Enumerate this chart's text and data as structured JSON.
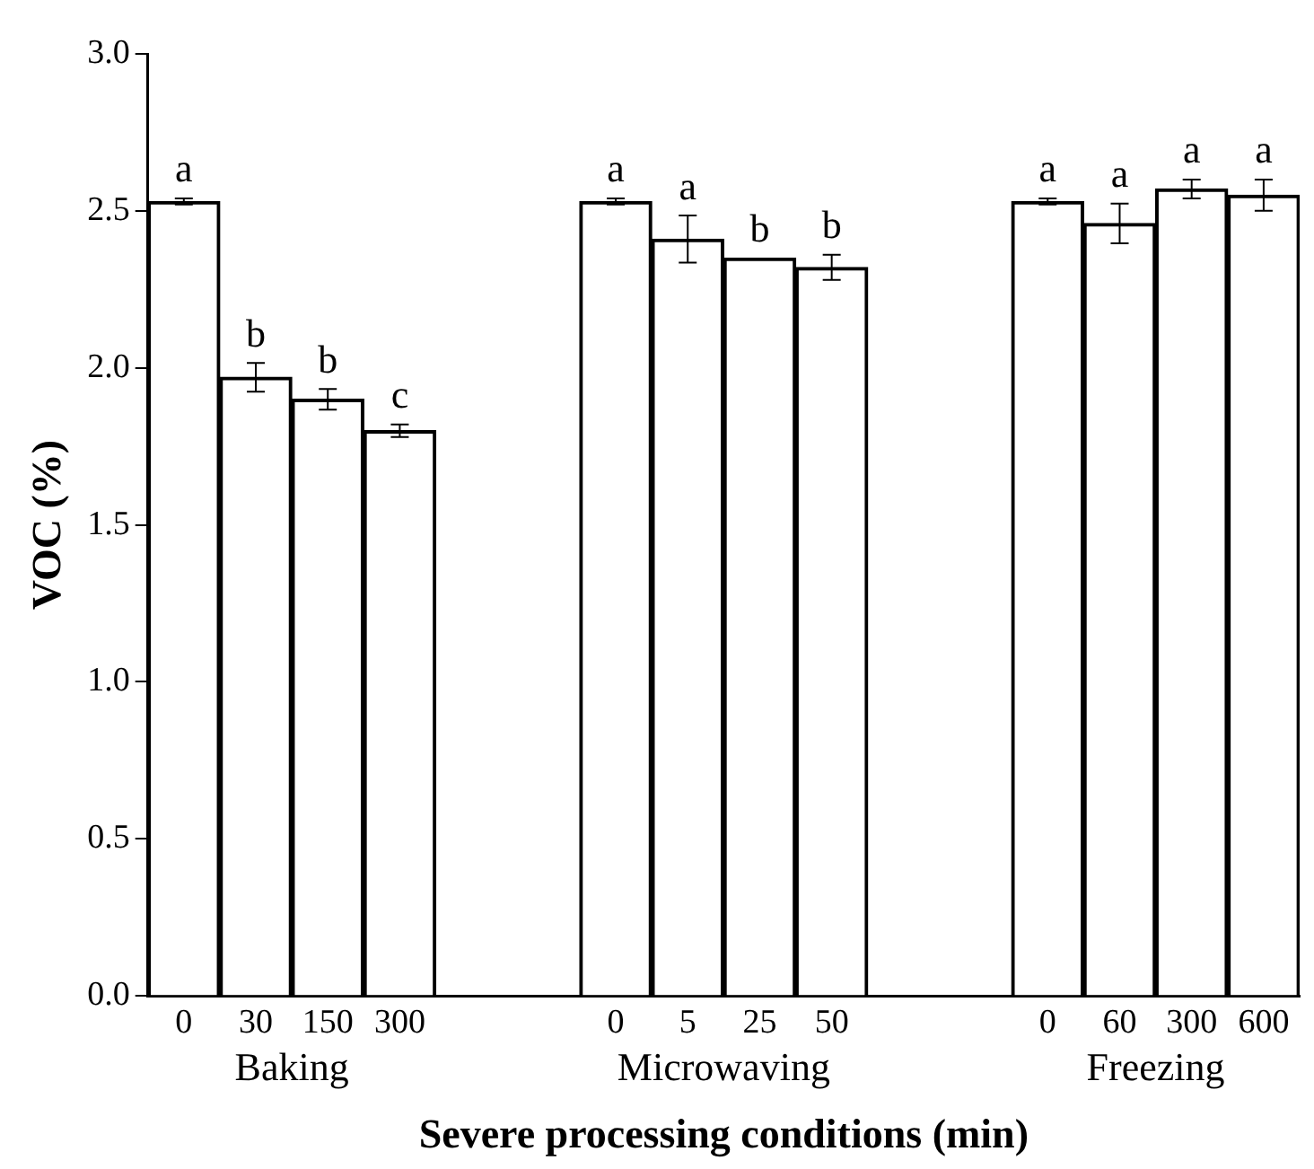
{
  "chart_data": {
    "type": "bar",
    "xlabel": "Severe processing conditions (min)",
    "ylabel": "VOC (%)",
    "categories": [
      "0",
      "30",
      "150",
      "300",
      null,
      null,
      "0",
      "5",
      "25",
      "50",
      null,
      null,
      "0",
      "60",
      "300",
      "600"
    ],
    "series": [
      {
        "color": "#ffffff",
        "values": [
          2.53,
          1.97,
          1.9,
          1.8,
          null,
          null,
          2.53,
          2.41,
          2.35,
          2.32,
          null,
          null,
          2.53,
          2.46,
          2.57,
          2.55
        ],
        "errors": [
          0.01,
          0.046,
          0.033,
          0.02,
          null,
          null,
          0.01,
          0.075,
          null,
          0.04,
          null,
          null,
          0.01,
          0.063,
          0.03,
          0.05
        ],
        "value_labels": [
          "a",
          "b",
          "b",
          "c",
          null,
          null,
          "a",
          "a",
          "b",
          "b",
          null,
          null,
          "a",
          "a",
          "a",
          "a"
        ]
      }
    ],
    "ylim": [
      0,
      3
    ],
    "yticks": [
      {
        "value": 0,
        "label": "0.0"
      },
      {
        "value": 0.5,
        "label": "0.5"
      },
      {
        "value": 1,
        "label": "1.0"
      },
      {
        "value": 1.5,
        "label": "1.5"
      },
      {
        "value": 2,
        "label": "2.0"
      },
      {
        "value": 2.5,
        "label": "2.5"
      },
      {
        "value": 3,
        "label": "3.0"
      }
    ],
    "annotations": [
      "Baking",
      "Microwaving",
      "Freezing"
    ]
  }
}
